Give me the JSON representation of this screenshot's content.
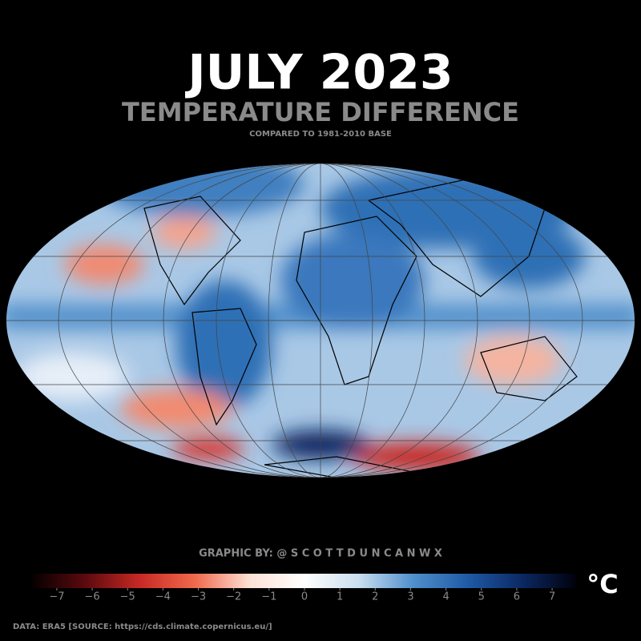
{
  "title": "JULY 2023",
  "subtitle": "TEMPERATURE DIFFERENCE",
  "baseline_note": "COMPARED TO 1981-2010 BASE",
  "credit": "GRAPHIC BY: @ S C O T T D U N C A N W X",
  "source": "DATA: ERA5 [SOURCE: https://cds.climate.copernicus.eu/]",
  "colorbar": {
    "unit": "°C",
    "clim": [
      -7.7,
      7.7
    ],
    "ticks": [
      {
        "value": -7,
        "label": "−7"
      },
      {
        "value": -6,
        "label": "−6"
      },
      {
        "value": -5,
        "label": "−5"
      },
      {
        "value": -4,
        "label": "−4"
      },
      {
        "value": -3,
        "label": "−3"
      },
      {
        "value": -2,
        "label": "−2"
      },
      {
        "value": -1,
        "label": "−1"
      },
      0,
      1,
      2,
      3,
      4,
      5,
      6,
      7
    ],
    "colormap": [
      "#050000",
      "#5e0a0e",
      "#c92a25",
      "#f06a4e",
      "#fde1d6",
      "#ffffff",
      "#c9ddef",
      "#4f8fcb",
      "#1f5aa6",
      "#0b2862",
      "#00000a"
    ]
  }
}
